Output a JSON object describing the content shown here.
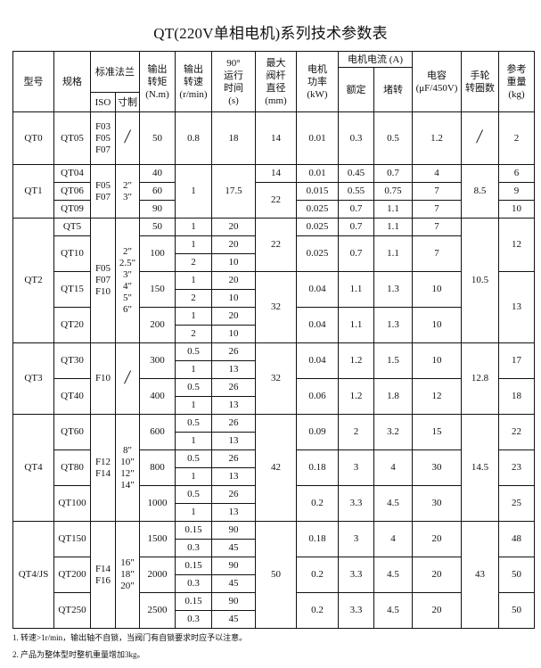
{
  "title": "QT(220V单相电机)系列技术参数表",
  "header": {
    "model": "型号",
    "spec": "规格",
    "flange": "标准法兰",
    "iso": "ISO",
    "inch": "寸制",
    "torque": "输出\n转矩\n(N.m)",
    "speed": "输出\n转速\n(r/min)",
    "time": "90°\n运行\n时间\n(s)",
    "stem": "最大\n阀杆\n直径\n(mm)",
    "power": "电机\n功率\n(kW)",
    "current": "电机电流 (A)",
    "rated": "额定",
    "locked": "堵转",
    "capacitor": "电容\n(μF/450V)",
    "handwheel": "手轮\n转圈数",
    "weight": "参考\n重量\n(kg)"
  },
  "groups": [
    {
      "model": "QT0",
      "flange": "F03\nF05\nF07",
      "size": "/",
      "speed": "0.8",
      "time": "18",
      "handwheel": "/",
      "stems": [
        {
          "value": "14",
          "specs": [
            "QT05"
          ]
        }
      ],
      "weights": [
        {
          "value": "2",
          "specs": [
            "QT05"
          ]
        }
      ],
      "specs": [
        {
          "name": "QT05",
          "torque": "50",
          "power": "0.01",
          "rated": "0.3",
          "locked": "0.5",
          "cap": "1.2"
        }
      ]
    },
    {
      "model": "QT1",
      "flange": "F05\nF07",
      "size": "2\"\n3\"",
      "speed": "1",
      "time": "17.5",
      "handwheel": "8.5",
      "stems": [
        {
          "value": "14",
          "specs": [
            "QT04"
          ]
        },
        {
          "value": "22",
          "specs": [
            "QT06",
            "QT09"
          ]
        }
      ],
      "weights": [
        {
          "value": "6",
          "specs": [
            "QT04"
          ]
        },
        {
          "value": "9",
          "specs": [
            "QT06"
          ]
        },
        {
          "value": "10",
          "specs": [
            "QT09"
          ]
        }
      ],
      "specs": [
        {
          "name": "QT04",
          "torque": "40",
          "power": "0.01",
          "rated": "0.45",
          "locked": "0.7",
          "cap": "4"
        },
        {
          "name": "QT06",
          "torque": "60",
          "power": "0.015",
          "rated": "0.55",
          "locked": "0.75",
          "cap": "7"
        },
        {
          "name": "QT09",
          "torque": "90",
          "power": "0.025",
          "rated": "0.7",
          "locked": "1.1",
          "cap": "7"
        }
      ]
    },
    {
      "model": "QT2",
      "flange": "F05\nF07\nF10",
      "size": "2\"\n2.5\"\n3\"\n4\"\n5\"\n6\"",
      "handwheel": "10.5",
      "stems": [
        {
          "value": "22",
          "specs": [
            "QT5",
            "QT10"
          ]
        },
        {
          "value": "32",
          "specs": [
            "QT15",
            "QT20"
          ]
        }
      ],
      "weights": [
        {
          "value": "12",
          "specs": [
            "QT5",
            "QT10"
          ]
        },
        {
          "value": "13",
          "specs": [
            "QT15",
            "QT20"
          ]
        }
      ],
      "specs": [
        {
          "name": "QT5",
          "torque": "50",
          "runs": [
            {
              "speed": "1",
              "time": "20"
            }
          ],
          "power": "0.025",
          "rated": "0.7",
          "locked": "1.1",
          "cap": "7"
        },
        {
          "name": "QT10",
          "torque": "100",
          "runs": [
            {
              "speed": "1",
              "time": "20"
            },
            {
              "speed": "2",
              "time": "10"
            }
          ],
          "power": "0.025",
          "rated": "0.7",
          "locked": "1.1",
          "cap": "7"
        },
        {
          "name": "QT15",
          "torque": "150",
          "runs": [
            {
              "speed": "1",
              "time": "20"
            },
            {
              "speed": "2",
              "time": "10"
            }
          ],
          "power": "0.04",
          "rated": "1.1",
          "locked": "1.3",
          "cap": "10"
        },
        {
          "name": "QT20",
          "torque": "200",
          "runs": [
            {
              "speed": "1",
              "time": "20"
            },
            {
              "speed": "2",
              "time": "10"
            }
          ],
          "power": "0.04",
          "rated": "1.1",
          "locked": "1.3",
          "cap": "10"
        }
      ]
    },
    {
      "model": "QT3",
      "flange": "F10",
      "size": "/",
      "handwheel": "12.8",
      "stems": [
        {
          "value": "32",
          "specs": [
            "QT30",
            "QT40"
          ]
        }
      ],
      "weights": [
        {
          "value": "17",
          "specs": [
            "QT30"
          ]
        },
        {
          "value": "18",
          "specs": [
            "QT40"
          ]
        }
      ],
      "specs": [
        {
          "name": "QT30",
          "torque": "300",
          "runs": [
            {
              "speed": "0.5",
              "time": "26"
            },
            {
              "speed": "1",
              "time": "13"
            }
          ],
          "power": "0.04",
          "rated": "1.2",
          "locked": "1.5",
          "cap": "10"
        },
        {
          "name": "QT40",
          "torque": "400",
          "runs": [
            {
              "speed": "0.5",
              "time": "26"
            },
            {
              "speed": "1",
              "time": "13"
            }
          ],
          "power": "0.06",
          "rated": "1.2",
          "locked": "1.8",
          "cap": "12"
        }
      ]
    },
    {
      "model": "QT4",
      "flange": "F12\nF14",
      "size": "8\"\n10\"\n12\"\n14\"",
      "handwheel": "14.5",
      "stems": [
        {
          "value": "42",
          "specs": [
            "QT60",
            "QT80",
            "QT100"
          ]
        }
      ],
      "weights": [
        {
          "value": "22",
          "specs": [
            "QT60"
          ]
        },
        {
          "value": "23",
          "specs": [
            "QT80"
          ]
        },
        {
          "value": "25",
          "specs": [
            "QT100"
          ]
        }
      ],
      "specs": [
        {
          "name": "QT60",
          "torque": "600",
          "runs": [
            {
              "speed": "0.5",
              "time": "26"
            },
            {
              "speed": "1",
              "time": "13"
            }
          ],
          "power": "0.09",
          "rated": "2",
          "locked": "3.2",
          "cap": "15"
        },
        {
          "name": "QT80",
          "torque": "800",
          "runs": [
            {
              "speed": "0.5",
              "time": "26"
            },
            {
              "speed": "1",
              "time": "13"
            }
          ],
          "power": "0.18",
          "rated": "3",
          "locked": "4",
          "cap": "30"
        },
        {
          "name": "QT100",
          "torque": "1000",
          "runs": [
            {
              "speed": "0.5",
              "time": "26"
            },
            {
              "speed": "1",
              "time": "13"
            }
          ],
          "power": "0.2",
          "rated": "3.3",
          "locked": "4.5",
          "cap": "30"
        }
      ]
    },
    {
      "model": "QT4/JS",
      "flange": "F14\nF16",
      "size": "16\"\n18\"\n20\"",
      "handwheel": "43",
      "stems": [
        {
          "value": "50",
          "specs": [
            "QT150",
            "QT200",
            "QT250"
          ]
        }
      ],
      "weights": [
        {
          "value": "48",
          "specs": [
            "QT150"
          ]
        },
        {
          "value": "50",
          "specs": [
            "QT200"
          ]
        },
        {
          "value": "50",
          "specs": [
            "QT250"
          ]
        }
      ],
      "specs": [
        {
          "name": "QT150",
          "torque": "1500",
          "runs": [
            {
              "speed": "0.15",
              "time": "90"
            },
            {
              "speed": "0.3",
              "time": "45"
            }
          ],
          "power": "0.18",
          "rated": "3",
          "locked": "4",
          "cap": "20"
        },
        {
          "name": "QT200",
          "torque": "2000",
          "runs": [
            {
              "speed": "0.15",
              "time": "90"
            },
            {
              "speed": "0.3",
              "time": "45"
            }
          ],
          "power": "0.2",
          "rated": "3.3",
          "locked": "4.5",
          "cap": "20"
        },
        {
          "name": "QT250",
          "torque": "2500",
          "runs": [
            {
              "speed": "0.15",
              "time": "90"
            },
            {
              "speed": "0.3",
              "time": "45"
            }
          ],
          "power": "0.2",
          "rated": "3.3",
          "locked": "4.5",
          "cap": "20"
        }
      ]
    }
  ],
  "notes": [
    "1. 转速>1r/min，输出轴不自锁，当阀门有自锁要求时应予以注意。",
    "2. 产品为整体型时整机重量增加3kg。"
  ]
}
